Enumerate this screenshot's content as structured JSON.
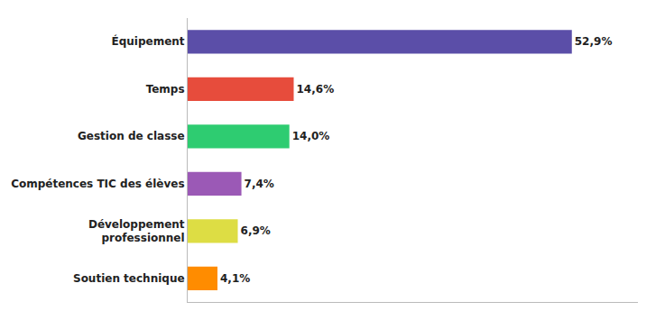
{
  "chart_data": {
    "type": "bar",
    "orientation": "horizontal",
    "categories": [
      "Soutien technique",
      "Développement\nprofessionnel",
      "Compétences TIC des élèves",
      "Gestion de classe",
      "Temps",
      "Équipement"
    ],
    "values": [
      4.1,
      6.9,
      7.4,
      14.0,
      14.6,
      52.9
    ],
    "value_labels": [
      "4,1%",
      "6,9%",
      "7,4%",
      "14,0%",
      "14,6%",
      "52,9%"
    ],
    "colors": [
      "#FF8C00",
      "#DDDD44",
      "#9B59B6",
      "#2ECC71",
      "#E74C3C",
      "#5B4EA8"
    ],
    "xlim": [
      0,
      62
    ],
    "data_labels": true,
    "tick_labels": "y",
    "grid": false
  }
}
